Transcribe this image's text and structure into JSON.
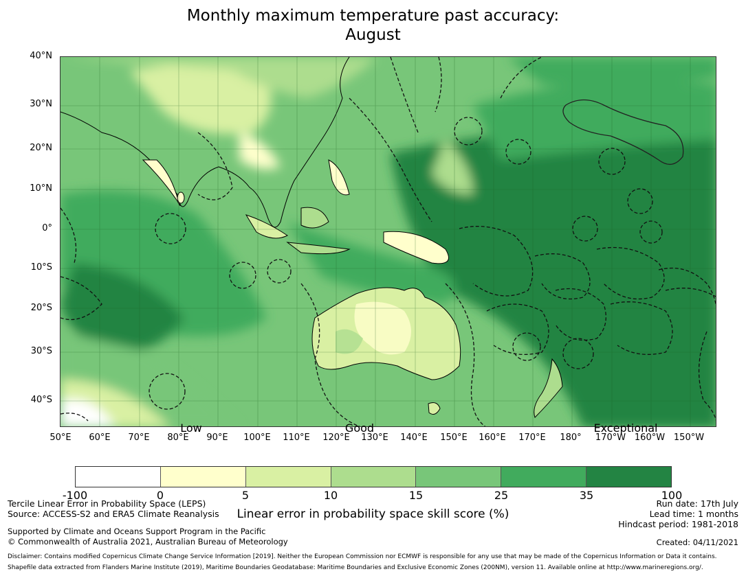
{
  "title_line1": "Monthly maximum temperature past accuracy:",
  "title_line2": "August",
  "lat_labels": [
    "40°N",
    "30°N",
    "20°N",
    "10°N",
    "0°",
    "10°S",
    "20°S",
    "30°S",
    "40°S"
  ],
  "lon_labels": [
    "50°E",
    "60°E",
    "70°E",
    "80°E",
    "90°E",
    "100°E",
    "110°E",
    "120°E",
    "130°E",
    "140°E",
    "150°E",
    "160°E",
    "170°E",
    "180°",
    "170°W",
    "160°W",
    "150°W"
  ],
  "skill_labels": [
    "Low",
    "Good",
    "Exceptional"
  ],
  "colorbar": {
    "ticks": [
      "-100",
      "0",
      "5",
      "10",
      "15",
      "25",
      "35",
      "100"
    ],
    "colors": [
      "#ffffff",
      "#ffffcc",
      "#d9f0a3",
      "#addd8e",
      "#78c679",
      "#41ab5d",
      "#238443"
    ],
    "label": "Linear error in probability space skill score (%)"
  },
  "footer": {
    "line1": "Tercile Linear Error in Probability Space (LEPS)",
    "line2": "Source: ACCESS-S2 and ERA5 Climate Reanalysis",
    "line3": "Supported by Climate and Oceans Support Program in the Pacific",
    "line4": "© Commonwealth of Australia 2021, Australian Bureau of Meteorology",
    "run_date": "Run date: 17th July",
    "lead_time": "Lead time: 1 months",
    "hindcast": "Hindcast period: 1981-2018",
    "created": "Created: 04/11/2021",
    "disclaimer1": "Disclaimer: Contains modified Copernicus Climate Change Service Information [2019]. Neither the European Commission nor ECMWF is responsible for any use that may be made of the Copernicus Information or Data it contains.",
    "disclaimer2": "Shapefile data extracted from Flanders Marine Institute (2019), Maritime Boundaries Geodatabase: Maritime Boundaries and Exclusive Economic Zones (200NM), version 11. Available online at http://www.marineregions.org/."
  }
}
